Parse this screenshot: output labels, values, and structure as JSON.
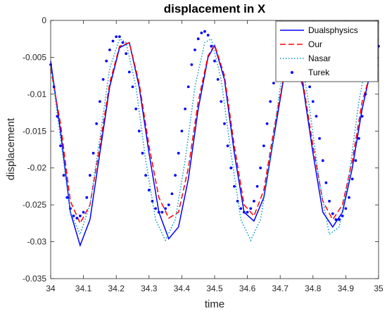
{
  "chart_data": {
    "type": "line",
    "title": "displacement in X",
    "xlabel": "time",
    "ylabel": "displacement",
    "xlim": [
      34,
      35
    ],
    "ylim": [
      -0.035,
      0
    ],
    "xticks": [
      "34",
      "34.1",
      "34.2",
      "34.3",
      "34.4",
      "34.5",
      "34.6",
      "34.7",
      "34.8",
      "34.9",
      "35"
    ],
    "yticks": [
      "0",
      "-0.005",
      "-0.01",
      "-0.015",
      "-0.02",
      "-0.025",
      "-0.03",
      "-0.035"
    ],
    "grid": false,
    "legend_position": "top-right",
    "series": [
      {
        "name": "Dualsphysics",
        "style": "solid",
        "color": "#0000ff",
        "x": [
          34.0,
          34.03,
          34.06,
          34.09,
          34.12,
          34.15,
          34.18,
          34.21,
          34.24,
          34.27,
          34.3,
          34.33,
          34.36,
          34.39,
          34.42,
          34.45,
          34.48,
          34.5,
          34.53,
          34.56,
          34.59,
          34.62,
          34.65,
          34.68,
          34.71,
          34.74,
          34.77,
          34.8,
          34.83,
          34.86,
          34.89,
          34.92,
          34.95,
          34.98,
          35.0
        ],
        "y": [
          -0.0055,
          -0.015,
          -0.026,
          -0.0305,
          -0.027,
          -0.018,
          -0.009,
          -0.0037,
          -0.003,
          -0.009,
          -0.018,
          -0.026,
          -0.0296,
          -0.028,
          -0.0215,
          -0.012,
          -0.005,
          -0.0034,
          -0.008,
          -0.018,
          -0.026,
          -0.0272,
          -0.024,
          -0.016,
          -0.008,
          -0.005,
          -0.009,
          -0.018,
          -0.026,
          -0.028,
          -0.026,
          -0.02,
          -0.012,
          -0.006,
          -0.005
        ]
      },
      {
        "name": "Our",
        "style": "dashed",
        "color": "#ff0000",
        "x": [
          34.0,
          34.03,
          34.06,
          34.09,
          34.12,
          34.15,
          34.18,
          34.21,
          34.24,
          34.27,
          34.3,
          34.33,
          34.36,
          34.39,
          34.42,
          34.45,
          34.48,
          34.5,
          34.53,
          34.56,
          34.59,
          34.62,
          34.65,
          34.68,
          34.71,
          34.74,
          34.77,
          34.8,
          34.83,
          34.86,
          34.89,
          34.92,
          34.95,
          34.98,
          35.0
        ],
        "y": [
          -0.0065,
          -0.014,
          -0.0245,
          -0.0275,
          -0.025,
          -0.017,
          -0.0085,
          -0.0035,
          -0.003,
          -0.0085,
          -0.017,
          -0.024,
          -0.0268,
          -0.026,
          -0.02,
          -0.011,
          -0.0048,
          -0.0033,
          -0.0075,
          -0.017,
          -0.025,
          -0.0265,
          -0.023,
          -0.015,
          -0.0078,
          -0.0052,
          -0.0085,
          -0.017,
          -0.0245,
          -0.027,
          -0.025,
          -0.019,
          -0.011,
          -0.0065,
          -0.006
        ]
      },
      {
        "name": "Nasar",
        "style": "dotted",
        "color": "#0097c4",
        "x": [
          34.0,
          34.03,
          34.06,
          34.09,
          34.12,
          34.15,
          34.18,
          34.21,
          34.23,
          34.26,
          34.29,
          34.32,
          34.35,
          34.38,
          34.41,
          34.44,
          34.47,
          34.49,
          34.52,
          34.55,
          34.58,
          34.61,
          34.64,
          34.67,
          34.7,
          34.73,
          34.76,
          34.79,
          34.82,
          34.85,
          34.88,
          34.91,
          34.94,
          34.97,
          35.0
        ],
        "y": [
          -0.006,
          -0.016,
          -0.026,
          -0.029,
          -0.025,
          -0.016,
          -0.0065,
          -0.0025,
          -0.003,
          -0.009,
          -0.019,
          -0.027,
          -0.0298,
          -0.027,
          -0.019,
          -0.009,
          -0.003,
          -0.0025,
          -0.008,
          -0.018,
          -0.027,
          -0.0298,
          -0.027,
          -0.019,
          -0.009,
          -0.0035,
          -0.004,
          -0.012,
          -0.022,
          -0.029,
          -0.028,
          -0.021,
          -0.011,
          -0.004,
          -0.0025
        ]
      },
      {
        "name": "Turek",
        "style": "points",
        "color": "#0000ff",
        "x": [
          34.0,
          34.01,
          34.02,
          34.03,
          34.04,
          34.05,
          34.06,
          34.07,
          34.08,
          34.09,
          34.1,
          34.11,
          34.12,
          34.13,
          34.14,
          34.15,
          34.16,
          34.17,
          34.18,
          34.19,
          34.2,
          34.21,
          34.22,
          34.23,
          34.24,
          34.25,
          34.26,
          34.27,
          34.28,
          34.29,
          34.3,
          34.31,
          34.32,
          34.33,
          34.34,
          34.35,
          34.36,
          34.37,
          34.38,
          34.39,
          34.4,
          34.41,
          34.42,
          34.43,
          34.44,
          34.45,
          34.46,
          34.47,
          34.48,
          34.49,
          34.5,
          34.51,
          34.52,
          34.53,
          34.54,
          34.55,
          34.56,
          34.57,
          34.58,
          34.59,
          34.6,
          34.61,
          34.62,
          34.63,
          34.64,
          34.65,
          34.66,
          34.67,
          34.68,
          34.69,
          34.7,
          34.71,
          34.72,
          34.73,
          34.74,
          34.75,
          34.76,
          34.77,
          34.78,
          34.79,
          34.8,
          34.81,
          34.82,
          34.83,
          34.84,
          34.85,
          34.86,
          34.87,
          34.88,
          34.89,
          34.9,
          34.91,
          34.92,
          34.93,
          34.94,
          34.95,
          34.96,
          34.97,
          34.98,
          34.99,
          35.0
        ],
        "y": [
          -0.006,
          -0.009,
          -0.013,
          -0.017,
          -0.021,
          -0.024,
          -0.0255,
          -0.0265,
          -0.0268,
          -0.0265,
          -0.026,
          -0.024,
          -0.021,
          -0.018,
          -0.014,
          -0.011,
          -0.008,
          -0.0055,
          -0.004,
          -0.0028,
          -0.0022,
          -0.0022,
          -0.003,
          -0.0045,
          -0.007,
          -0.009,
          -0.012,
          -0.015,
          -0.018,
          -0.021,
          -0.023,
          -0.0245,
          -0.0255,
          -0.026,
          -0.026,
          -0.0255,
          -0.025,
          -0.0235,
          -0.021,
          -0.018,
          -0.015,
          -0.012,
          -0.009,
          -0.006,
          -0.004,
          -0.0025,
          -0.0017,
          -0.0015,
          -0.002,
          -0.0035,
          -0.0055,
          -0.008,
          -0.011,
          -0.014,
          -0.017,
          -0.02,
          -0.0225,
          -0.0245,
          -0.0255,
          -0.026,
          -0.026,
          -0.0255,
          -0.0245,
          -0.0225,
          -0.02,
          -0.017,
          -0.014,
          -0.011,
          -0.0085,
          -0.007,
          -0.0065,
          -0.0065,
          -0.007,
          -0.0075,
          -0.0075,
          -0.0075,
          -0.0075,
          -0.0075,
          -0.0075,
          -0.009,
          -0.011,
          -0.013,
          -0.016,
          -0.019,
          -0.022,
          -0.0245,
          -0.0262,
          -0.027,
          -0.027,
          -0.0265,
          -0.0255,
          -0.024,
          -0.0215,
          -0.019,
          -0.016,
          -0.013,
          -0.01,
          -0.0075,
          -0.0055,
          -0.0045,
          -0.0035
        ]
      }
    ]
  }
}
